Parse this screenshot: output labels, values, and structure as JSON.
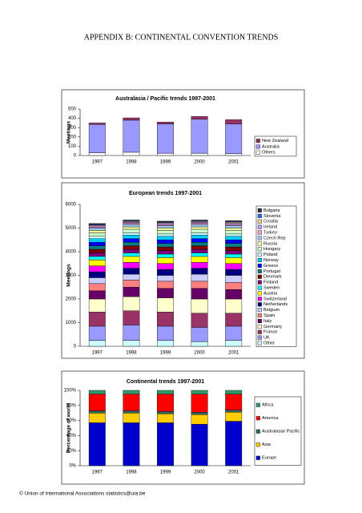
{
  "header": {
    "title": "APPENDIX B: CONTINENTAL CONVENTION TRENDS"
  },
  "footer": "© Union of International Associations  statistics@uia.be",
  "chart_data": [
    {
      "type": "bar",
      "stacked": true,
      "title": "Australasia / Pacific trends 1997-2001",
      "y_label": "Meetings",
      "categories": [
        "1997",
        "1998",
        "1999",
        "2000",
        "2001"
      ],
      "ylim": [
        0,
        500
      ],
      "yticks": [
        0,
        100,
        200,
        300,
        400,
        500
      ],
      "series": [
        {
          "name": "Others",
          "color": "#ffffff",
          "values": [
            30,
            35,
            25,
            25,
            20
          ]
        },
        {
          "name": "Australia",
          "color": "#9999ff",
          "values": [
            305,
            345,
            315,
            365,
            320
          ]
        },
        {
          "name": "New Zealand",
          "color": "#993366",
          "values": [
            15,
            25,
            20,
            30,
            45
          ]
        }
      ]
    },
    {
      "type": "bar",
      "stacked": true,
      "title": "European trends 1997-2001",
      "y_label": "Meetings",
      "categories": [
        "1997",
        "1998",
        "1999",
        "2000",
        "2001"
      ],
      "ylim": [
        0,
        6000
      ],
      "yticks": [
        0,
        1000,
        2000,
        3000,
        4000,
        5000,
        6000
      ],
      "series": [
        {
          "name": "Other",
          "color": "#ccffff",
          "values": [
            250,
            250,
            250,
            200,
            250
          ]
        },
        {
          "name": "UK",
          "color": "#9999ff",
          "values": [
            600,
            650,
            600,
            600,
            600
          ]
        },
        {
          "name": "France",
          "color": "#993366",
          "values": [
            600,
            600,
            600,
            600,
            550
          ]
        },
        {
          "name": "Germany",
          "color": "#ffffcc",
          "values": [
            550,
            600,
            600,
            600,
            600
          ]
        },
        {
          "name": "Italy",
          "color": "#660066",
          "values": [
            350,
            400,
            400,
            450,
            400
          ]
        },
        {
          "name": "Spain",
          "color": "#ff8080",
          "values": [
            300,
            300,
            300,
            300,
            300
          ]
        },
        {
          "name": "Belgium",
          "color": "#ccccff",
          "values": [
            250,
            250,
            250,
            300,
            300
          ]
        },
        {
          "name": "Netherlands",
          "color": "#000080",
          "values": [
            250,
            250,
            250,
            250,
            250
          ]
        },
        {
          "name": "Switzerland",
          "color": "#ff00ff",
          "values": [
            250,
            250,
            250,
            250,
            250
          ]
        },
        {
          "name": "Austria",
          "color": "#ffff00",
          "values": [
            250,
            250,
            250,
            250,
            250
          ]
        },
        {
          "name": "Sweden",
          "color": "#00ffff",
          "values": [
            150,
            150,
            150,
            150,
            150
          ]
        },
        {
          "name": "Finland",
          "color": "#800080",
          "values": [
            150,
            150,
            150,
            150,
            150
          ]
        },
        {
          "name": "Denmark",
          "color": "#800000",
          "values": [
            150,
            150,
            150,
            150,
            150
          ]
        },
        {
          "name": "Portugal",
          "color": "#008080",
          "values": [
            150,
            150,
            150,
            150,
            150
          ]
        },
        {
          "name": "Greece",
          "color": "#0000ff",
          "values": [
            150,
            150,
            150,
            150,
            150
          ]
        },
        {
          "name": "Norway",
          "color": "#00ccff",
          "values": [
            150,
            150,
            150,
            150,
            150
          ]
        },
        {
          "name": "Poland",
          "color": "#ccffff",
          "values": [
            100,
            100,
            100,
            100,
            100
          ]
        },
        {
          "name": "Hungary",
          "color": "#ccffcc",
          "values": [
            150,
            150,
            150,
            150,
            150
          ]
        },
        {
          "name": "Russia",
          "color": "#ffff99",
          "values": [
            100,
            100,
            100,
            100,
            100
          ]
        },
        {
          "name": "Czech Rep",
          "color": "#99ccff",
          "values": [
            100,
            100,
            100,
            100,
            100
          ]
        },
        {
          "name": "Turkey",
          "color": "#ff99cc",
          "values": [
            50,
            50,
            50,
            50,
            50
          ]
        },
        {
          "name": "Ireland",
          "color": "#cc99ff",
          "values": [
            50,
            50,
            50,
            50,
            50
          ]
        },
        {
          "name": "Croatia",
          "color": "#ffcc99",
          "values": [
            30,
            30,
            30,
            30,
            50
          ]
        },
        {
          "name": "Slovenia",
          "color": "#3366ff",
          "values": [
            30,
            30,
            30,
            30,
            30
          ]
        },
        {
          "name": "Bulgaria",
          "color": "#333333",
          "values": [
            30,
            30,
            30,
            30,
            30
          ]
        }
      ]
    },
    {
      "type": "bar",
      "stacked": true,
      "title": "Continental trends 1997-2001",
      "y_label": "Percentage of world",
      "categories": [
        "1997",
        "1998",
        "1999",
        "2000",
        "2001"
      ],
      "ylim": [
        0,
        100
      ],
      "yticks": [
        {
          "value": 0,
          "label": "0%"
        },
        {
          "value": 20,
          "label": "20%"
        },
        {
          "value": 40,
          "label": "40%"
        },
        {
          "value": 60,
          "label": "60%"
        },
        {
          "value": 80,
          "label": "80%"
        },
        {
          "value": 100,
          "label": "100%"
        }
      ],
      "series": [
        {
          "name": "Europe",
          "color": "#0000cc",
          "values": [
            57,
            57,
            57,
            55,
            59
          ]
        },
        {
          "name": "Asia",
          "color": "#ffcc00",
          "values": [
            13,
            13,
            12,
            13,
            12
          ]
        },
        {
          "name": "Australasia/ Pacific",
          "color": "#336666",
          "values": [
            3,
            3,
            3,
            3,
            3
          ]
        },
        {
          "name": "America",
          "color": "#ff0000",
          "values": [
            22,
            22,
            23,
            24,
            21
          ]
        },
        {
          "name": "Africa",
          "color": "#339966",
          "values": [
            5,
            5,
            5,
            5,
            5
          ]
        }
      ]
    }
  ]
}
